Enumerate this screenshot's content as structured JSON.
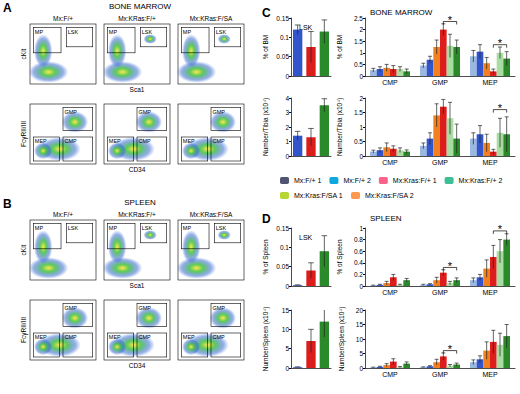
{
  "flow_panels": [
    {
      "letter": "A",
      "title": "BONE MARROW",
      "columns": [
        "Mx:F/+",
        "Mx:KRas:F/+",
        "Mx:KRas:F/SA"
      ],
      "rows": [
        {
          "x": "Sca1",
          "y": "cKit",
          "gates": [
            "MP",
            "LSK"
          ]
        },
        {
          "x": "CD34",
          "y": "FcγRII/III",
          "gates": [
            "GMP",
            "MEP",
            "CMP"
          ]
        }
      ]
    },
    {
      "letter": "B",
      "title": "SPLEEN",
      "columns": [
        "Mx:F/+",
        "Mx:KRas:F/+",
        "Mx:KRas:F/SA"
      ],
      "rows": [
        {
          "x": "Sca1",
          "y": "cKit",
          "gates": [
            "MP",
            "LSK"
          ]
        },
        {
          "x": "CD34",
          "y": "FcγRII/III",
          "gates": [
            "GMP",
            "MEP",
            "CMP"
          ]
        }
      ]
    }
  ],
  "chart_panels": [
    {
      "letter": "C",
      "title": "BONE MARROW"
    },
    {
      "letter": "D",
      "title": "SPLEEN"
    }
  ],
  "chart_data": [
    {
      "type": "bar",
      "title": "LSK",
      "ylabel": "% of BM",
      "categories": [
        null,
        null,
        null
      ],
      "values": [
        0.12,
        0.075,
        0.115
      ],
      "errors": [
        0.012,
        0.04,
        0.03
      ],
      "colors": [
        "#3355cc",
        "#dd1c1c",
        "#2a8a2a"
      ],
      "ylim": [
        0,
        0.15
      ],
      "yticks": [
        0,
        0.05,
        0.1,
        0.15
      ],
      "grid": false
    },
    {
      "type": "bar",
      "ylabel": "% of BM",
      "categories": [
        "CMP",
        "GMP",
        "MEP"
      ],
      "series": [
        {
          "name": "Mx:F/+ 1",
          "color": "#9ab8e0",
          "values": [
            0.25,
            0.45,
            0.85
          ],
          "errors": [
            0.08,
            0.1,
            0.25
          ]
        },
        {
          "name": "Mx:F/+ 2",
          "color": "#3355cc",
          "values": [
            0.3,
            0.7,
            1.05
          ],
          "errors": [
            0.1,
            0.15,
            0.3
          ]
        },
        {
          "name": "Mx:Kras:F/+ 1",
          "color": "#f08020",
          "values": [
            0.35,
            1.25,
            0.55
          ],
          "errors": [
            0.15,
            0.3,
            0.25
          ]
        },
        {
          "name": "Mx:Kras:F/+ 2",
          "color": "#dd1c1c",
          "values": [
            0.3,
            2.0,
            0.2
          ],
          "errors": [
            0.15,
            0.25,
            0.1
          ]
        },
        {
          "name": "Mx:Kras:F/SA 1",
          "color": "#a8dca0",
          "values": [
            0.3,
            1.3,
            1.0
          ],
          "errors": [
            0.1,
            0.5,
            0.25
          ]
        },
        {
          "name": "Mx:Kras:F/SA 2",
          "color": "#2a8a2a",
          "values": [
            0.2,
            1.25,
            0.75
          ],
          "errors": [
            0.1,
            0.3,
            0.3
          ]
        }
      ],
      "annotations": [
        {
          "text": "*",
          "category": "GMP",
          "from": "Mx:Kras:F/+ 2",
          "to": "Mx:Kras:F/SA 2",
          "y": 2.35
        },
        {
          "text": "*",
          "category": "MEP",
          "from": "Mx:Kras:F/+ 2",
          "to": "Mx:Kras:F/SA 2",
          "y": 1.35
        }
      ],
      "ylim": [
        0,
        2.5
      ],
      "yticks": [
        0,
        0.5,
        1,
        1.5,
        2,
        2.5
      ],
      "grid": false
    },
    {
      "type": "bar",
      "ylabel": "Number/Tibia (x10⁴)",
      "categories": [
        null,
        null,
        null
      ],
      "values": [
        1.4,
        1.3,
        3.5
      ],
      "errors": [
        0.3,
        0.6,
        0.45
      ],
      "colors": [
        "#3355cc",
        "#dd1c1c",
        "#2a8a2a"
      ],
      "ylim": [
        0,
        4
      ],
      "yticks": [
        0,
        1,
        2,
        3,
        4
      ],
      "grid": false
    },
    {
      "type": "bar",
      "ylabel": "Number/Tibia (x10⁴)",
      "categories": [
        "CMP",
        "GMP",
        "MEP"
      ],
      "series": [
        {
          "name": "Mx:F/+ 1",
          "color": "#9ab8e0",
          "values": [
            0.15,
            0.35,
            0.6
          ],
          "errors": [
            0.05,
            0.1,
            0.2
          ]
        },
        {
          "name": "Mx:F/+ 2",
          "color": "#3355cc",
          "values": [
            0.2,
            0.6,
            0.75
          ],
          "errors": [
            0.08,
            0.2,
            0.3
          ]
        },
        {
          "name": "Mx:Kras:F/+ 1",
          "color": "#f08020",
          "values": [
            0.3,
            1.4,
            0.45
          ],
          "errors": [
            0.15,
            0.4,
            0.3
          ]
        },
        {
          "name": "Mx:Kras:F/+ 2",
          "color": "#dd1c1c",
          "values": [
            0.25,
            1.7,
            0.15
          ],
          "errors": [
            0.1,
            0.25,
            0.08
          ]
        },
        {
          "name": "Mx:Kras:F/SA 1",
          "color": "#a8dca0",
          "values": [
            0.2,
            1.3,
            0.8
          ],
          "errors": [
            0.08,
            0.55,
            0.5
          ]
        },
        {
          "name": "Mx:Kras:F/SA 2",
          "color": "#2a8a2a",
          "values": [
            0.15,
            0.6,
            0.75
          ],
          "errors": [
            0.06,
            0.5,
            0.6
          ]
        }
      ],
      "annotations": [
        {
          "text": "*",
          "category": "MEP",
          "from": "Mx:Kras:F/+ 2",
          "to": "Mx:Kras:F/SA 2",
          "y": 1.6
        }
      ],
      "legend": "bottom",
      "ylim": [
        0,
        2
      ],
      "yticks": [
        0,
        0.5,
        1,
        1.5,
        2
      ],
      "grid": false
    },
    {
      "type": "bar",
      "title": "LSK",
      "ylabel": "% of Spleen",
      "categories": [
        null,
        null,
        null
      ],
      "values": [
        0.002,
        0.04,
        0.09
      ],
      "errors": [
        0.001,
        0.02,
        0.04
      ],
      "colors": [
        "#3355cc",
        "#dd1c1c",
        "#2a8a2a"
      ],
      "ylim": [
        0,
        0.15
      ],
      "yticks": [
        0,
        0.05,
        0.1,
        0.15
      ],
      "grid": false
    },
    {
      "type": "bar",
      "ylabel": "% of Spleen",
      "categories": [
        "CMP",
        "GMP",
        "MEP"
      ],
      "series": [
        {
          "name": "Mx:F/+ 1",
          "color": "#9ab8e0",
          "values": [
            0.01,
            0.02,
            0.1
          ],
          "errors": [
            0.005,
            0.01,
            0.04
          ]
        },
        {
          "name": "Mx:F/+ 2",
          "color": "#3355cc",
          "values": [
            0.02,
            0.03,
            0.15
          ],
          "errors": [
            0.01,
            0.01,
            0.05
          ]
        },
        {
          "name": "Mx:Kras:F/+ 1",
          "color": "#f08020",
          "values": [
            0.05,
            0.1,
            0.3
          ],
          "errors": [
            0.03,
            0.05,
            0.15
          ]
        },
        {
          "name": "Mx:Kras:F/+ 2",
          "color": "#dd1c1c",
          "values": [
            0.15,
            0.23,
            0.5
          ],
          "errors": [
            0.05,
            0.05,
            0.2
          ]
        },
        {
          "name": "Mx:Kras:F/SA 1",
          "color": "#a8dca0",
          "values": [
            0.02,
            0.05,
            0.6
          ],
          "errors": [
            0.01,
            0.03,
            0.2
          ]
        },
        {
          "name": "Mx:Kras:F/SA 2",
          "color": "#2a8a2a",
          "values": [
            0.1,
            0.1,
            0.8
          ],
          "errors": [
            0.03,
            0.04,
            0.1
          ]
        }
      ],
      "annotations": [
        {
          "text": "*",
          "category": "GMP",
          "from": "Mx:Kras:F/+ 2",
          "to": "Mx:Kras:F/SA 2",
          "y": 0.32
        },
        {
          "text": "*",
          "category": "MEP",
          "from": "Mx:Kras:F/+ 2",
          "to": "Mx:Kras:F/SA 2",
          "y": 0.95
        }
      ],
      "ylim": [
        0,
        1
      ],
      "yticks": [
        0,
        0.2,
        0.4,
        0.6,
        0.8,
        1
      ],
      "grid": false
    },
    {
      "type": "bar",
      "ylabel": "Number/Spleen (x10⁴)",
      "categories": [
        null,
        null,
        null
      ],
      "values": [
        0.2,
        7,
        12
      ],
      "errors": [
        0.1,
        3,
        4
      ],
      "colors": [
        "#3355cc",
        "#dd1c1c",
        "#2a8a2a"
      ],
      "ylim": [
        0,
        15
      ],
      "yticks": [
        0,
        5,
        10,
        15
      ],
      "grid": false
    },
    {
      "type": "bar",
      "ylabel": "Number/Spleen (x10⁴)",
      "categories": [
        "CMP",
        "GMP",
        "MEP"
      ],
      "series": [
        {
          "name": "Mx:F/+ 1",
          "color": "#9ab8e0",
          "values": [
            0.2,
            0.3,
            2
          ],
          "errors": [
            0.1,
            0.1,
            0.8
          ]
        },
        {
          "name": "Mx:F/+ 2",
          "color": "#3355cc",
          "values": [
            0.4,
            0.6,
            3
          ],
          "errors": [
            0.2,
            0.2,
            1.2
          ]
        },
        {
          "name": "Mx:Kras:F/+ 1",
          "color": "#f08020",
          "values": [
            1,
            2,
            6
          ],
          "errors": [
            0.5,
            1,
            3
          ]
        },
        {
          "name": "Mx:Kras:F/+ 2",
          "color": "#dd1c1c",
          "values": [
            2.2,
            4,
            9
          ],
          "errors": [
            1,
            1.2,
            4
          ]
        },
        {
          "name": "Mx:Kras:F/SA 1",
          "color": "#a8dca0",
          "values": [
            0.3,
            0.8,
            8
          ],
          "errors": [
            0.2,
            0.4,
            4
          ]
        },
        {
          "name": "Mx:Kras:F/SA 2",
          "color": "#2a8a2a",
          "values": [
            1.5,
            1.2,
            11
          ],
          "errors": [
            0.6,
            0.5,
            4
          ]
        }
      ],
      "annotations": [
        {
          "text": "*",
          "category": "GMP",
          "from": "Mx:Kras:F/+ 2",
          "to": "Mx:Kras:F/SA 2",
          "y": 6
        }
      ],
      "ylim": [
        0,
        20
      ],
      "yticks": [
        0,
        5,
        10,
        15,
        20
      ],
      "grid": false
    }
  ]
}
